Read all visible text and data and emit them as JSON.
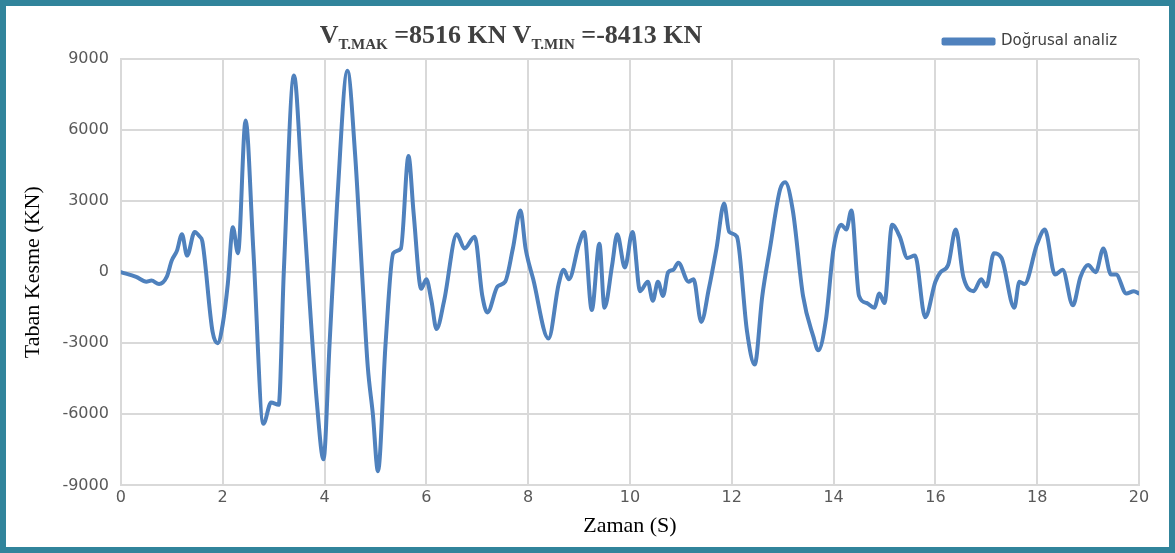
{
  "chart_data": {
    "type": "line",
    "title": "V$_{T.MAK}$ =8516 KN   V$_{T.MIN}$ =-8413 KN",
    "xlabel": "Zaman (S)",
    "ylabel": "Taban Kesme (KN)",
    "xlim": [
      0,
      20
    ],
    "xticks": [
      0,
      2,
      4,
      6,
      8,
      10,
      12,
      14,
      16,
      18,
      20
    ],
    "ylim": [
      -9000,
      9000
    ],
    "yticks": [
      -9000,
      -6000,
      -3000,
      0,
      3000,
      6000,
      9000
    ],
    "grid": true,
    "legend": "top right",
    "marker": "none",
    "line_style": "solid",
    "series": [
      {
        "name": "Doğrusal analiz",
        "color": "#4f81bd",
        "x": [
          0,
          0.3,
          0.5,
          0.6,
          0.75,
          0.9,
          1.0,
          1.1,
          1.2,
          1.3,
          1.45,
          1.55,
          1.6,
          1.8,
          1.9,
          2.0,
          2.1,
          2.2,
          2.3,
          2.45,
          2.6,
          2.8,
          2.95,
          3.1,
          3.2,
          3.4,
          3.55,
          3.7,
          3.85,
          3.98,
          4.1,
          4.25,
          4.45,
          4.6,
          4.75,
          4.85,
          4.95,
          5.05,
          5.2,
          5.35,
          5.5,
          5.65,
          5.75,
          5.9,
          6.0,
          6.1,
          6.2,
          6.35,
          6.6,
          6.75,
          6.95,
          7.1,
          7.2,
          7.4,
          7.55,
          7.7,
          7.85,
          7.95,
          8.1,
          8.4,
          8.6,
          8.7,
          8.8,
          9.0,
          9.1,
          9.25,
          9.4,
          9.5,
          9.65,
          9.75,
          9.9,
          10.05,
          10.2,
          10.35,
          10.45,
          10.55,
          10.65,
          10.75,
          10.85,
          10.95,
          11.15,
          11.25,
          11.4,
          11.55,
          11.7,
          11.85,
          11.95,
          12.1,
          12.3,
          12.45,
          12.6,
          12.75,
          12.95,
          13.05,
          13.2,
          13.4,
          13.6,
          13.7,
          13.85,
          14.0,
          14.15,
          14.25,
          14.35,
          14.5,
          14.65,
          14.8,
          14.9,
          15.0,
          15.15,
          15.3,
          15.45,
          15.6,
          15.8,
          16.0,
          16.1,
          16.25,
          16.4,
          16.55,
          16.75,
          16.9,
          17.0,
          17.15,
          17.3,
          17.55,
          17.65,
          17.75,
          18.0,
          18.15,
          18.35,
          18.5,
          18.7,
          18.85,
          19.0,
          19.15,
          19.3,
          19.45,
          19.55,
          19.75,
          19.9,
          20.0
        ],
        "values": [
          0,
          -200,
          -400,
          -350,
          -500,
          -200,
          500,
          900,
          1600,
          700,
          1700,
          1500,
          1300,
          -2500,
          -3000,
          -2200,
          -500,
          1900,
          800,
          6400,
          1000,
          -6400,
          -5500,
          -5600,
          0,
          8300,
          4000,
          -1000,
          -5500,
          -7900,
          -3000,
          3000,
          8500,
          5000,
          -500,
          -4000,
          -6000,
          -8400,
          -3000,
          800,
          1000,
          4900,
          2500,
          -700,
          -300,
          -1200,
          -2400,
          -1200,
          1600,
          1000,
          1500,
          -1000,
          -1700,
          -600,
          -400,
          1000,
          2600,
          1000,
          -300,
          -2800,
          -500,
          100,
          -300,
          1200,
          1700,
          -1600,
          1200,
          -1500,
          300,
          1600,
          200,
          1700,
          -800,
          -400,
          -1200,
          -400,
          -1000,
          0,
          100,
          400,
          -400,
          -300,
          -2100,
          -700,
          1000,
          2900,
          1700,
          1500,
          -2500,
          -3900,
          -1000,
          1000,
          3500,
          3800,
          2600,
          -1000,
          -2700,
          -3300,
          -2000,
          1000,
          2000,
          1800,
          2600,
          -1000,
          -1300,
          -1500,
          -900,
          -1300,
          2000,
          1500,
          600,
          700,
          -1900,
          -400,
          0,
          300,
          1800,
          -200,
          -800,
          -300,
          -600,
          800,
          600,
          -1500,
          -400,
          -500,
          1200,
          1800,
          -100,
          100,
          -1400,
          -200,
          300,
          0,
          1000,
          -100,
          -100,
          -900,
          -800,
          -900
        ]
      }
    ]
  }
}
